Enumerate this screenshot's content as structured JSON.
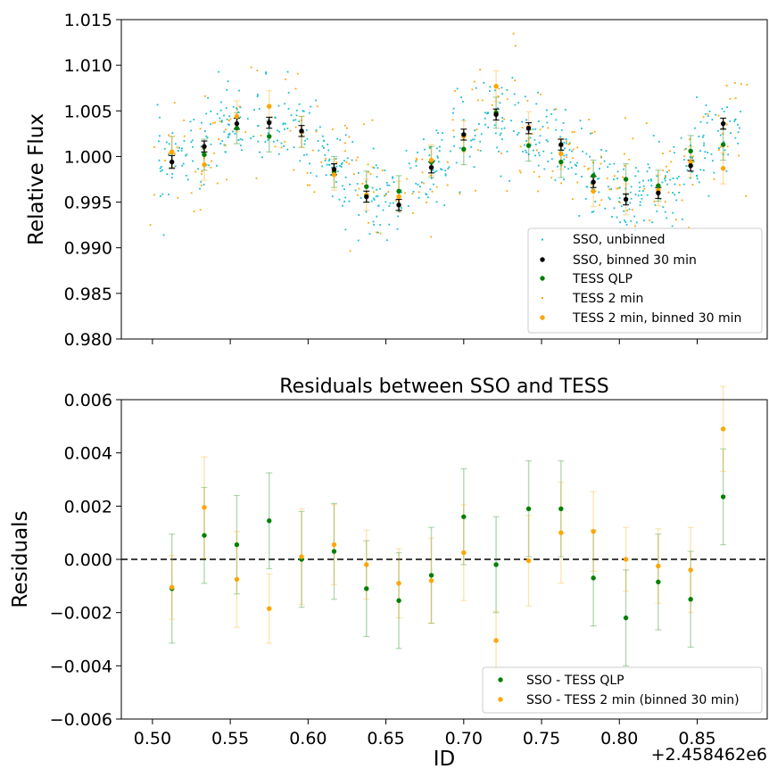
{
  "colors": {
    "sso": "#17becf",
    "sso_binned": "#000000",
    "qlp": "#008000",
    "tess2": "#ffa500",
    "tess2_binned": "#ffa500"
  },
  "chart_data": [
    {
      "type": "scatter",
      "xlim": [
        0.48,
        0.895
      ],
      "ylim": [
        0.98,
        1.015
      ],
      "yticks": [
        "0.980",
        "0.985",
        "0.990",
        "0.995",
        "1.000",
        "1.005",
        "1.010",
        "1.015"
      ],
      "ylabel": "Relative Flux",
      "legend": "lower-right",
      "legend_entries": [
        "SSO, unbinned",
        "SSO, binned 30 min",
        "TESS QLP",
        "TESS 2 min",
        "TESS 2 min, binned 30 min"
      ],
      "series": [
        {
          "name": "SSO, binned 30 min",
          "x": [
            0.5125,
            0.5333,
            0.5542,
            0.575,
            0.5958,
            0.6167,
            0.6375,
            0.6583,
            0.6792,
            0.7,
            0.7208,
            0.7417,
            0.7625,
            0.7833,
            0.8042,
            0.825,
            0.8458,
            0.8667
          ],
          "y": [
            0.9994,
            1.0011,
            1.0036,
            1.0037,
            1.0028,
            0.9986,
            0.9956,
            0.9947,
            0.9988,
            1.0024,
            1.0046,
            1.0031,
            1.0013,
            0.9972,
            0.9953,
            0.996,
            0.999,
            1.0036
          ],
          "yerr": [
            0.0007,
            0.0006,
            0.0006,
            0.0006,
            0.0006,
            0.0006,
            0.0006,
            0.0006,
            0.0006,
            0.0006,
            0.0006,
            0.0006,
            0.0006,
            0.0006,
            0.0006,
            0.0006,
            0.0006,
            0.0006
          ]
        },
        {
          "name": "TESS QLP",
          "x": [
            0.5125,
            0.5333,
            0.5542,
            0.575,
            0.5958,
            0.6167,
            0.6375,
            0.6583,
            0.6792,
            0.7,
            0.7208,
            0.7417,
            0.7625,
            0.7833,
            0.8042,
            0.825,
            0.8458,
            0.8667
          ],
          "y": [
            1.0005,
            1.0002,
            1.0031,
            1.0022,
            1.0027,
            0.9983,
            0.9967,
            0.9962,
            0.9994,
            1.0008,
            1.0048,
            1.0012,
            0.9994,
            0.9979,
            0.9975,
            0.9968,
            1.0006,
            1.0013
          ],
          "yerr": [
            0.0017,
            0.0017,
            0.0017,
            0.0017,
            0.0017,
            0.0017,
            0.0017,
            0.0017,
            0.0017,
            0.0017,
            0.0017,
            0.0017,
            0.0017,
            0.0017,
            0.0017,
            0.0017,
            0.0017,
            0.0017
          ]
        },
        {
          "name": "TESS 2 min, binned 30 min",
          "x": [
            0.5125,
            0.5333,
            0.5542,
            0.575,
            0.5958,
            0.6167,
            0.6375,
            0.6583,
            0.6792,
            0.7,
            0.7208,
            0.7417,
            0.7625,
            0.7833,
            0.8042,
            0.825,
            0.8458,
            0.8667
          ],
          "y": [
            1.0005,
            0.9991,
            1.0044,
            1.0055,
            1.0027,
            0.998,
            0.9958,
            0.9956,
            0.9996,
            1.0022,
            1.0077,
            1.0032,
            1.0003,
            0.9962,
            0.9953,
            0.9963,
            0.9994,
            0.9987
          ],
          "yerr": [
            0.0017,
            0.0017,
            0.0017,
            0.0017,
            0.0017,
            0.0017,
            0.0017,
            0.0017,
            0.0017,
            0.0017,
            0.0017,
            0.0017,
            0.0017,
            0.0017,
            0.0017,
            0.0017,
            0.0017,
            0.0017
          ]
        }
      ]
    },
    {
      "type": "scatter",
      "title": "Residuals between SSO and TESS",
      "xlim": [
        0.48,
        0.895
      ],
      "ylim": [
        -0.006,
        0.006
      ],
      "xticks": [
        "0.50",
        "0.55",
        "0.60",
        "0.65",
        "0.70",
        "0.75",
        "0.80",
        "0.85"
      ],
      "yticks": [
        "−0.006",
        "−0.004",
        "−0.002",
        "0.000",
        "0.002",
        "0.004",
        "0.006"
      ],
      "xlabel": "ID",
      "ylabel": "Residuals",
      "x_offset_label": "+2.458462e6",
      "legend": "lower-right",
      "legend_entries": [
        "SSO - TESS QLP",
        "SSO - TESS 2 min (binned 30 min)"
      ],
      "series": [
        {
          "name": "SSO - TESS QLP",
          "x": [
            0.5125,
            0.5333,
            0.5542,
            0.575,
            0.5958,
            0.6167,
            0.6375,
            0.6583,
            0.6792,
            0.7,
            0.7208,
            0.7417,
            0.7625,
            0.7833,
            0.8042,
            0.825,
            0.8458,
            0.8667
          ],
          "y": [
            -0.0011,
            0.0009,
            0.00055,
            0.00145,
            0.0,
            0.0003,
            -0.0011,
            -0.00155,
            -0.0006,
            0.0016,
            -0.0002,
            0.0019,
            0.0019,
            -0.0007,
            -0.0022,
            -0.00085,
            -0.0015,
            0.00235
          ],
          "yerr": [
            0.00205,
            0.0018,
            0.00185,
            0.0018,
            0.0018,
            0.0018,
            0.0018,
            0.0018,
            0.0018,
            0.0018,
            0.0018,
            0.0018,
            0.0018,
            0.0018,
            0.0018,
            0.0018,
            0.0018,
            0.0018
          ]
        },
        {
          "name": "SSO - TESS 2 min (binned 30 min)",
          "x": [
            0.5125,
            0.5333,
            0.5542,
            0.575,
            0.5958,
            0.6167,
            0.6375,
            0.6583,
            0.6792,
            0.7,
            0.7208,
            0.7417,
            0.7625,
            0.7833,
            0.8042,
            0.825,
            0.8458,
            0.8667
          ],
          "y": [
            -0.00105,
            0.00195,
            -0.00075,
            -0.00185,
            0.0001,
            0.00055,
            -0.0002,
            -0.0009,
            -0.0008,
            0.00025,
            -0.00305,
            -5e-05,
            0.001,
            0.00105,
            0.0,
            -0.00025,
            -0.0004,
            0.0049
          ],
          "yerr": [
            0.0012,
            0.0019,
            0.0018,
            0.0013,
            0.0018,
            0.0015,
            0.0013,
            0.0013,
            0.0016,
            0.0018,
            0.0011,
            0.0017,
            0.0019,
            0.0015,
            0.0012,
            0.0014,
            0.0016,
            0.0016
          ]
        }
      ]
    }
  ]
}
